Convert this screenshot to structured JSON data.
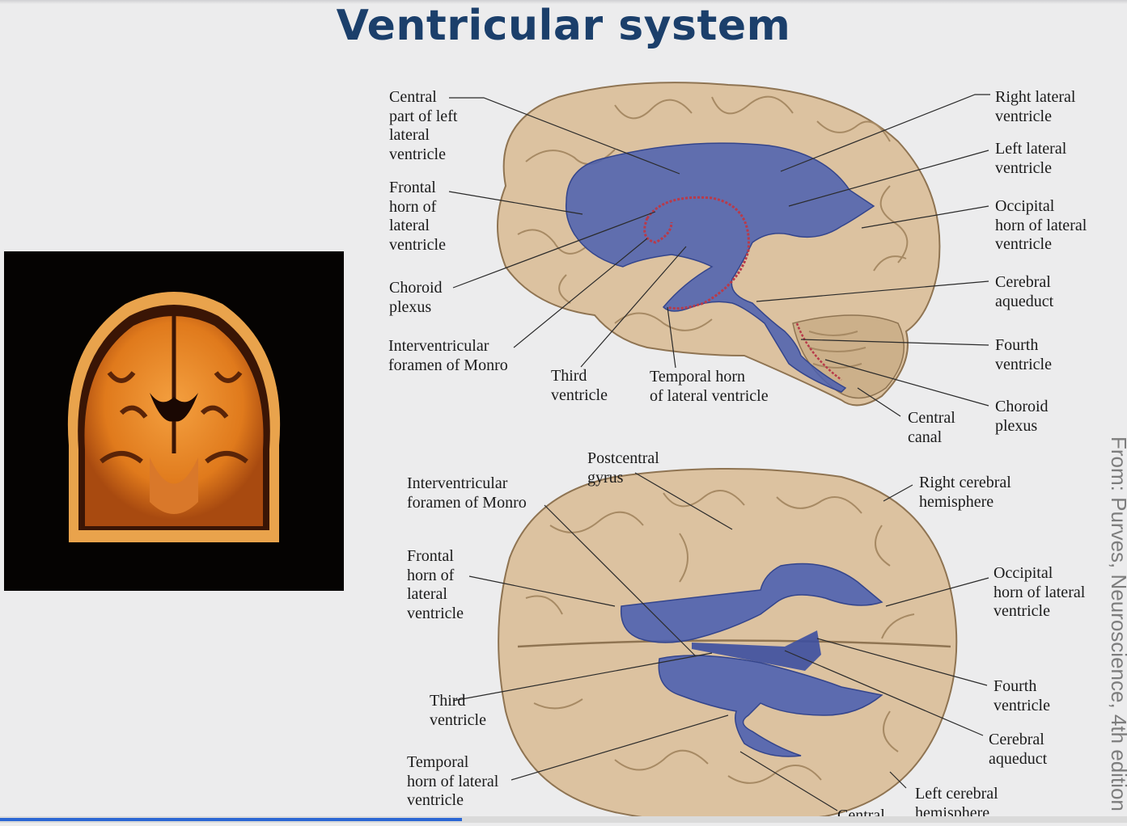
{
  "slide": {
    "title": "Ventricular system",
    "progress_fraction": 0.41
  },
  "citation": {
    "text": "From: Purves, Neuroscience, 4th edition"
  },
  "mri": {
    "description_icon": "mri-coronal-brain-image"
  },
  "sagittal_labels": {
    "central_part": [
      "Central",
      "part of left",
      "lateral",
      "ventricle"
    ],
    "frontal_horn": [
      "Frontal",
      "horn of",
      "lateral",
      "ventricle"
    ],
    "choroid_plexus_left": [
      "Choroid",
      "plexus"
    ],
    "interventricular_foramen": [
      "Interventricular",
      "foramen of Monro"
    ],
    "third_ventricle": [
      "Third",
      "ventricle"
    ],
    "temporal_horn": [
      "Temporal horn",
      "of  lateral ventricle"
    ],
    "central_canal": [
      "Central",
      "canal"
    ],
    "right_lateral": [
      "Right lateral",
      "ventricle"
    ],
    "left_lateral": [
      "Left lateral",
      "ventricle"
    ],
    "occipital_horn": [
      "Occipital",
      "horn of lateral",
      "ventricle"
    ],
    "cerebral_aqueduct": [
      "Cerebral",
      "aqueduct"
    ],
    "fourth_ventricle": [
      "Fourth",
      "ventricle"
    ],
    "choroid_plexus_right": [
      "Choroid",
      "plexus"
    ]
  },
  "dorsal_labels": {
    "postcentral_gyrus": [
      "Postcentral",
      "gyrus"
    ],
    "interventricular_foramen": [
      "Interventricular",
      "foramen of Monro"
    ],
    "frontal_horn": [
      "Frontal",
      "horn of",
      "lateral",
      "ventricle"
    ],
    "third_ventricle": [
      "Third",
      "ventricle"
    ],
    "temporal_horn": [
      "Temporal",
      "horn of lateral",
      "ventricle"
    ],
    "central": [
      "Central"
    ],
    "right_hemisphere": [
      "Right cerebral",
      "hemisphere"
    ],
    "occipital_horn": [
      "Occipital",
      "horn of lateral",
      "ventricle"
    ],
    "fourth_ventricle": [
      "Fourth",
      "ventricle"
    ],
    "cerebral_aqueduct": [
      "Cerebral",
      "aqueduct"
    ],
    "left_hemisphere": [
      "Left cerebral",
      "hemisphere"
    ]
  },
  "colors": {
    "title": "#1b3f6b",
    "brain": "#dcc2a0",
    "ventricle": "#4a5fb0",
    "choroid": "#b83a4a",
    "progress": "#2b67d4"
  }
}
